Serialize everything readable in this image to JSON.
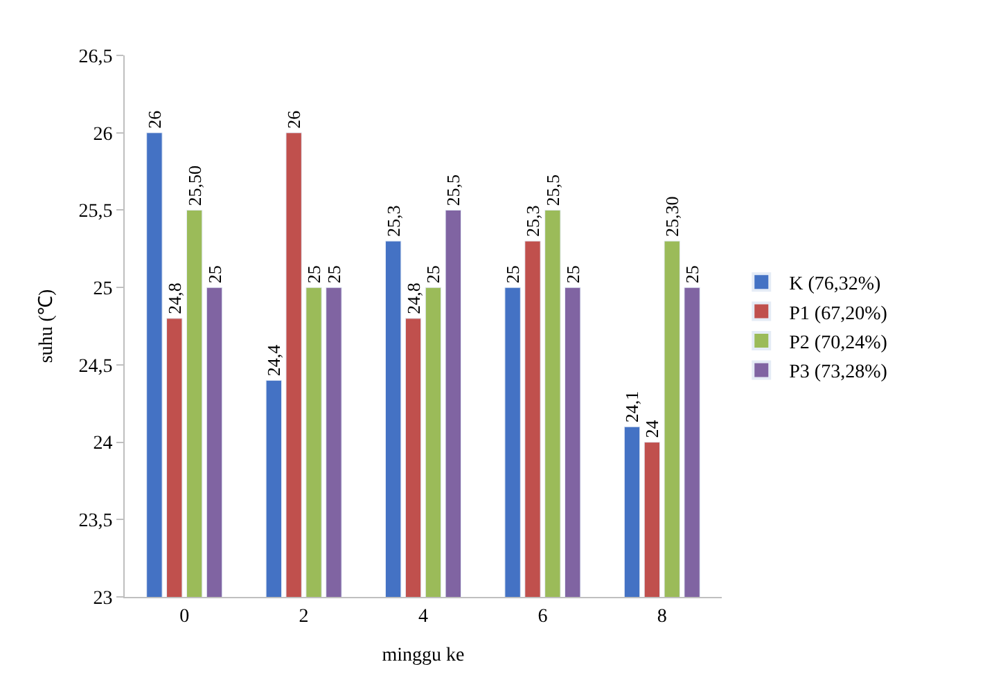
{
  "chart_data": {
    "type": "bar",
    "xlabel": "minggu ke",
    "ylabel": "suhu (℃)",
    "categories": [
      "0",
      "2",
      "4",
      "6",
      "8"
    ],
    "ylim": [
      23,
      26.5
    ],
    "yticks": [
      23,
      {
        "value": 23.5,
        "label": "23,5"
      },
      24,
      {
        "value": 24.5,
        "label": "24,5"
      },
      25,
      {
        "value": 25.5,
        "label": "25,5"
      },
      26,
      {
        "value": 26.5,
        "label": "26,5"
      }
    ],
    "legend": "right",
    "series": [
      {
        "name": "K (76,32%)",
        "color": "#4472c4",
        "values": [
          26,
          24.4,
          25.3,
          25,
          24.1
        ],
        "value_labels": [
          "26",
          "24,4",
          "25,3",
          "25",
          "24,1"
        ]
      },
      {
        "name": "P1 (67,20%)",
        "color": "#c0504d",
        "values": [
          24.8,
          26,
          24.8,
          25.3,
          24
        ],
        "value_labels": [
          "24,8",
          "26",
          "24,8",
          "25,3",
          "24"
        ]
      },
      {
        "name": "P2 (70,24%)",
        "color": "#9bbb59",
        "values": [
          25.5,
          25,
          25,
          25.5,
          25.3
        ],
        "value_labels": [
          "25,50",
          "25",
          "25",
          "25,5",
          "25,30"
        ]
      },
      {
        "name": "P3 (73,28%)",
        "color": "#8064a2",
        "values": [
          25,
          25,
          25.5,
          25,
          25
        ],
        "value_labels": [
          "25",
          "25",
          "25,5",
          "25",
          "25"
        ]
      }
    ]
  }
}
